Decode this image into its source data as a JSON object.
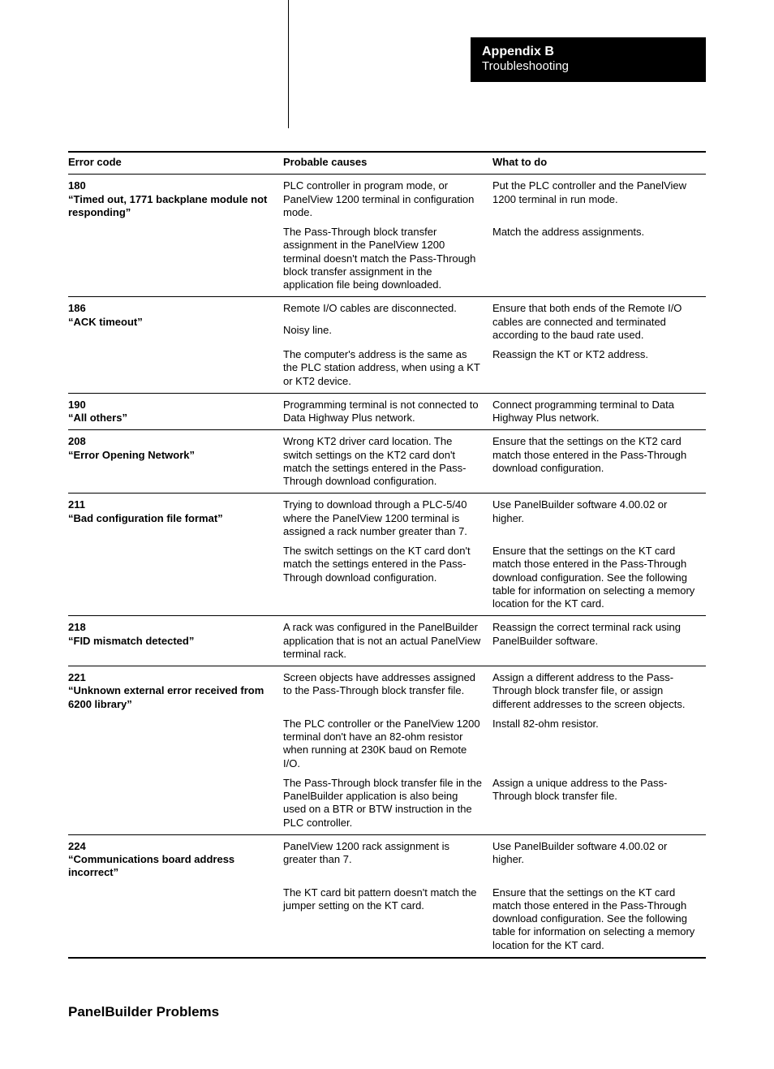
{
  "header": {
    "title": "Appendix B",
    "subtitle": "Troubleshooting"
  },
  "table": {
    "columns": [
      "Error code",
      "Probable causes",
      "What to do"
    ],
    "rows": [
      {
        "code": "180",
        "msg": "“Timed out, 1771 backplane module not responding”",
        "pairs": [
          {
            "cause": "PLC controller in program mode, or PanelView 1200 terminal in configuration mode.",
            "action": "Put the PLC controller and the PanelView 1200 terminal in run mode."
          },
          {
            "cause": "The Pass-Through block transfer assignment in the PanelView 1200 terminal doesn't match the Pass-Through block transfer assignment in the application file being downloaded.",
            "action": "Match the address assignments."
          }
        ]
      },
      {
        "code": "186",
        "msg": "“ACK timeout”",
        "pairs": [
          {
            "cause": "Remote I/O cables are disconnected.",
            "action": "Ensure that both ends of the Remote I/O cables are connected and terminated according to the baud rate used.",
            "cause2": "Noisy line."
          },
          {
            "cause": "The computer's address is the same as the PLC station address, when using a KT or KT2 device.",
            "action": "Reassign the KT or KT2 address."
          }
        ]
      },
      {
        "code": "190",
        "msg": "“All others”",
        "pairs": [
          {
            "cause": "Programming terminal is not connected to Data Highway Plus network.",
            "action": "Connect programming terminal to Data Highway Plus network."
          }
        ]
      },
      {
        "code": "208",
        "msg": "“Error Opening Network”",
        "pairs": [
          {
            "cause": "Wrong KT2 driver card location. The switch settings on the KT2 card don't match the settings entered in the Pass-Through download configuration.",
            "action": "Ensure that the settings on the KT2 card match those entered in the Pass-Through download configuration."
          }
        ]
      },
      {
        "code": "211",
        "msg": "“Bad configuration file format”",
        "pairs": [
          {
            "cause": "Trying to download through a PLC-5/40 where the PanelView 1200 terminal is assigned a rack number greater than 7.",
            "action": "Use PanelBuilder software 4.00.02 or higher."
          },
          {
            "cause": "The switch settings on the KT card don't match the settings entered in the Pass-Through download configuration.",
            "action": "Ensure that the settings on the KT card match those entered in the Pass-Through download configuration. See the following table for information on selecting a memory location for the KT card."
          }
        ]
      },
      {
        "code": "218",
        "msg": "“FID mismatch detected”",
        "pairs": [
          {
            "cause": "A rack was configured in the PanelBuilder application that is not an actual PanelView terminal rack.",
            "action": "Reassign the correct terminal rack using PanelBuilder software."
          }
        ]
      },
      {
        "code": "221",
        "msg": "“Unknown external error received from 6200 library”",
        "pairs": [
          {
            "cause": "Screen objects have addresses assigned to the Pass-Through block transfer file.",
            "action": "Assign a different address to the Pass-Through block transfer file, or assign different addresses to the screen objects."
          },
          {
            "cause": "The PLC controller or the PanelView 1200 terminal don't have an 82-ohm resistor when running at 230K baud on Remote I/O.",
            "action": "Install 82-ohm resistor."
          },
          {
            "cause": "The Pass-Through block transfer file in the PanelBuilder application is also being used on a BTR or BTW instruction in the PLC controller.",
            "action": "Assign a unique address to the Pass-Through block transfer file."
          }
        ]
      },
      {
        "code": "224",
        "msg": "“Communications board address incorrect”",
        "pairs": [
          {
            "cause": "PanelView 1200 rack assignment is greater than 7.",
            "action": "Use PanelBuilder software 4.00.02 or higher."
          },
          {
            "cause": "The KT card bit pattern doesn't match the jumper setting on the KT card.",
            "action": "Ensure that the settings on the KT card match those entered in the Pass-Through download configuration. See the following table for information on selecting a memory location for the KT card."
          }
        ]
      }
    ]
  },
  "section_heading": "PanelBuilder Problems"
}
